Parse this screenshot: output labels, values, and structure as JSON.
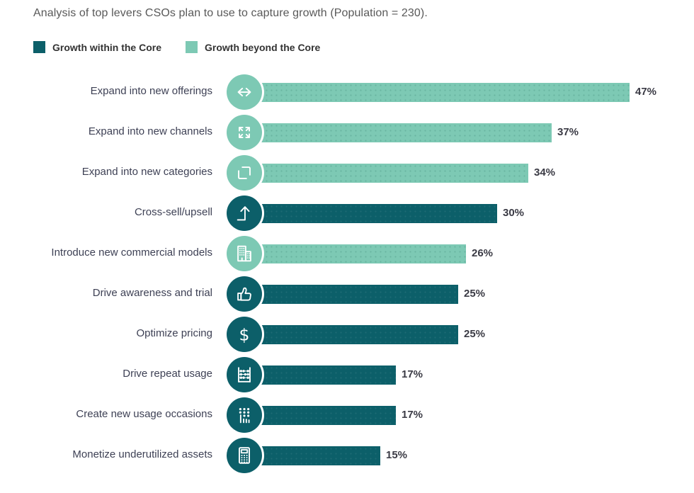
{
  "title": "Analysis of top levers CSOs plan to use to capture growth (Population = 230).",
  "legend": [
    {
      "label": "Growth within the Core",
      "color_key": "within"
    },
    {
      "label": "Growth beyond the Core",
      "color_key": "beyond"
    }
  ],
  "colors": {
    "within": "#0c5f69",
    "beyond": "#7dc9b4",
    "title_text": "#595959",
    "category_text": "#3e4155",
    "value_text": "#3a3a44"
  },
  "chart_data": {
    "type": "bar",
    "orientation": "horizontal",
    "unit": "%",
    "xlim": [
      0,
      50
    ],
    "value_label_format": "{value}%",
    "legend_position": "top-left",
    "grid": false,
    "rows": [
      {
        "label": "Expand into new offerings",
        "value": 47,
        "series": "Growth beyond the Core",
        "icon": "horizontal-arrows-icon"
      },
      {
        "label": "Expand into new channels",
        "value": 37,
        "series": "Growth beyond the Core",
        "icon": "expand-arrows-icon"
      },
      {
        "label": "Expand into new categories",
        "value": 34,
        "series": "Growth beyond the Core",
        "icon": "overlapping-squares-icon"
      },
      {
        "label": "Cross-sell/upsell",
        "value": 30,
        "series": "Growth within the Core",
        "icon": "upsell-arrow-icon"
      },
      {
        "label": "Introduce new commercial models",
        "value": 26,
        "series": "Growth beyond the Core",
        "icon": "buildings-icon"
      },
      {
        "label": "Drive awareness and trial",
        "value": 25,
        "series": "Growth within the Core",
        "icon": "thumbs-up-icon"
      },
      {
        "label": "Optimize pricing",
        "value": 25,
        "series": "Growth within the Core",
        "icon": "dollar-icon"
      },
      {
        "label": "Drive repeat usage",
        "value": 17,
        "series": "Growth within the Core",
        "icon": "abacus-icon"
      },
      {
        "label": "Create new usage occasions",
        "value": 17,
        "series": "Growth within the Core",
        "icon": "keypad-hand-icon"
      },
      {
        "label": "Monetize underutilized assets",
        "value": 15,
        "series": "Growth within the Core",
        "icon": "calculator-icon"
      }
    ]
  }
}
